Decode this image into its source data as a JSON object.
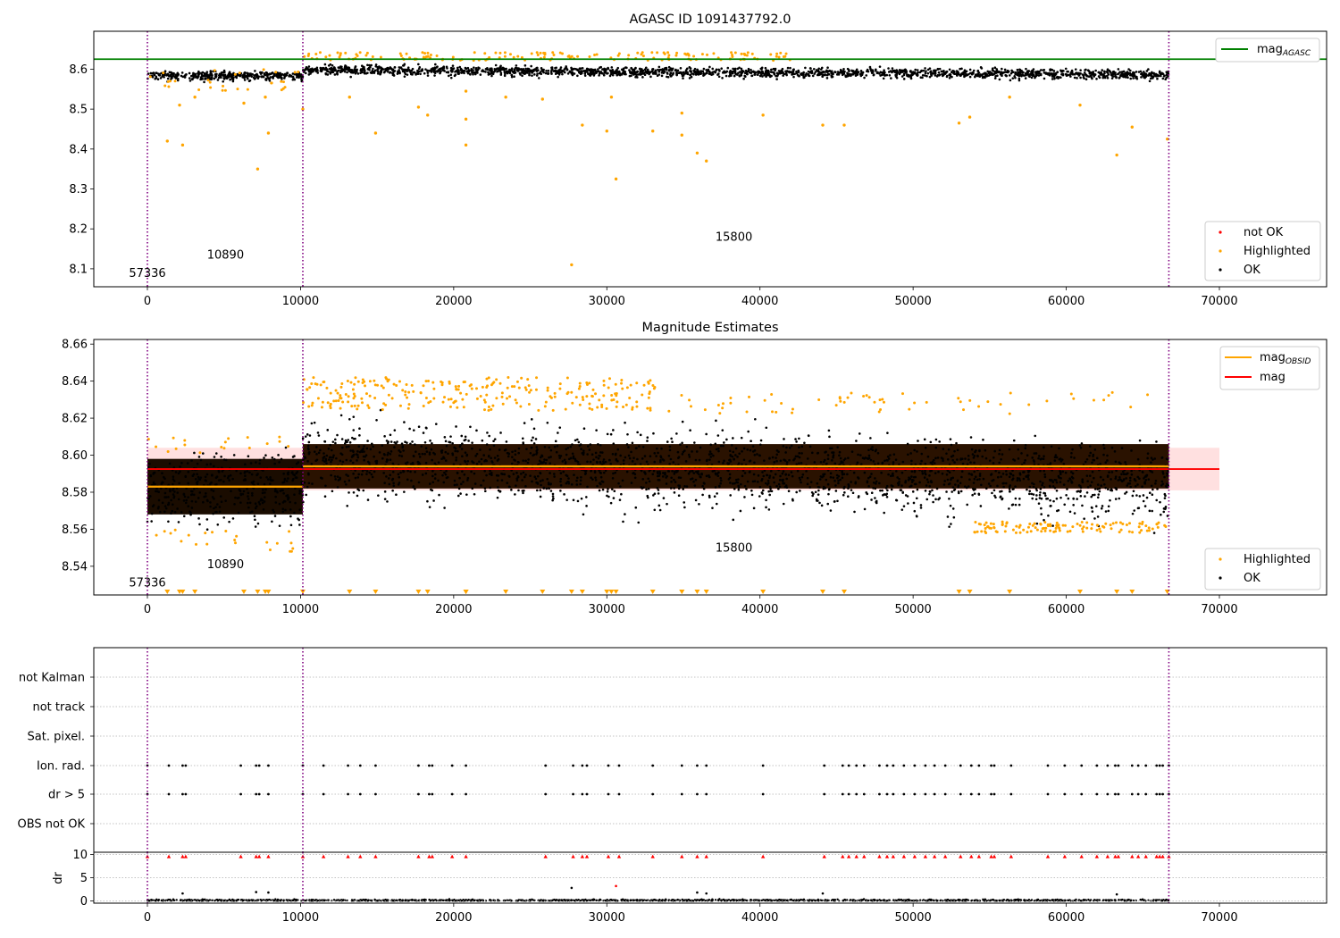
{
  "chart_data": [
    {
      "type": "scatter",
      "title": "AGASC ID 1091437792.0",
      "xlabel": "",
      "ylabel": "",
      "xlim": [
        -3500,
        77000
      ],
      "ylim": [
        8.055,
        8.695
      ],
      "xticks": [
        0,
        10000,
        20000,
        30000,
        40000,
        50000,
        60000,
        70000
      ],
      "yticks": [
        8.1,
        8.2,
        8.3,
        8.4,
        8.5,
        8.6
      ],
      "grid": false,
      "obs_boundaries": [
        0,
        10150,
        66700
      ],
      "obs_labels": [
        {
          "text": "57336",
          "x": 0,
          "y": 8.08
        },
        {
          "text": "10890",
          "x": 5100,
          "y": 8.125
        },
        {
          "text": "15800",
          "x": 38300,
          "y": 8.17
        }
      ],
      "lines": [
        {
          "name": "mag",
          "sub": "AGASC",
          "y": 8.625,
          "color": "#008000"
        }
      ],
      "series": [
        {
          "name": "not OK",
          "color": "#ff0000",
          "values": []
        },
        {
          "name": "Highlighted",
          "color": "#ffa500",
          "values": [
            [
              1300,
              8.42
            ],
            [
              2300,
              8.41
            ],
            [
              2100,
              8.51
            ],
            [
              3100,
              8.53
            ],
            [
              6300,
              8.515
            ],
            [
              7200,
              8.35
            ],
            [
              7700,
              8.53
            ],
            [
              7900,
              8.44
            ],
            [
              10150,
              8.5
            ],
            [
              13200,
              8.53
            ],
            [
              14900,
              8.44
            ],
            [
              17700,
              8.505
            ],
            [
              18300,
              8.485
            ],
            [
              20800,
              8.41
            ],
            [
              20800,
              8.475
            ],
            [
              20800,
              8.545
            ],
            [
              23400,
              8.53
            ],
            [
              25800,
              8.525
            ],
            [
              27700,
              8.11
            ],
            [
              28400,
              8.46
            ],
            [
              30000,
              8.445
            ],
            [
              30600,
              8.325
            ],
            [
              30300,
              8.53
            ],
            [
              33000,
              8.445
            ],
            [
              34900,
              8.49
            ],
            [
              34900,
              8.435
            ],
            [
              35900,
              8.39
            ],
            [
              36500,
              8.37
            ],
            [
              40200,
              8.485
            ],
            [
              44100,
              8.46
            ],
            [
              45500,
              8.46
            ],
            [
              53000,
              8.465
            ],
            [
              53700,
              8.48
            ],
            [
              56300,
              8.53
            ],
            [
              60900,
              8.51
            ],
            [
              63300,
              8.385
            ],
            [
              64300,
              8.455
            ],
            [
              66600,
              8.425
            ]
          ]
        },
        {
          "name": "OK",
          "color": "#000000",
          "values": []
        }
      ],
      "legend": [
        "top-right",
        "bottom-right"
      ]
    },
    {
      "type": "scatter",
      "title": "Magnitude Estimates",
      "xlabel": "",
      "ylabel": "",
      "xlim": [
        -3500,
        77000
      ],
      "ylim": [
        8.5245,
        8.6625
      ],
      "xticks": [
        0,
        10000,
        20000,
        30000,
        40000,
        50000,
        60000,
        70000
      ],
      "yticks": [
        8.54,
        8.56,
        8.58,
        8.6,
        8.62,
        8.64,
        8.66
      ],
      "grid": false,
      "obs_boundaries": [
        0,
        10150,
        66700
      ],
      "obs_labels": [
        {
          "text": "57336",
          "x": 0,
          "y": 8.529
        },
        {
          "text": "10890",
          "x": 5100,
          "y": 8.539
        },
        {
          "text": "15800",
          "x": 38300,
          "y": 8.548
        }
      ],
      "lines": [
        {
          "name": "mag",
          "sub": "OBSID",
          "color": "#ffa500",
          "segments": [
            [
              0,
              10150,
              8.583
            ],
            [
              10150,
              66700,
              8.594
            ]
          ]
        },
        {
          "name": "mag",
          "sub": "",
          "color": "#ff0000",
          "y": 8.5925,
          "band": [
            8.581,
            8.604
          ],
          "xrange": [
            0,
            70000
          ]
        }
      ],
      "series": [
        {
          "name": "Highlighted",
          "color": "#ffa500",
          "values": []
        },
        {
          "name": "OK",
          "color": "#000000",
          "values": []
        }
      ],
      "legend": [
        "top-right",
        "bottom-right"
      ]
    },
    {
      "type": "scatter",
      "title": "",
      "xlabel": "",
      "ylabel": "",
      "categories": [
        "not Kalman",
        "not track",
        "Sat. pixel.",
        "Ion. rad.",
        "dr > 5",
        "OBS not OK"
      ],
      "xlim": [
        -3500,
        77000
      ],
      "grid": true,
      "obs_boundaries": [
        0,
        10150,
        66700
      ],
      "flag_times": [
        0,
        1400,
        2300,
        2500,
        6100,
        7100,
        7300,
        7900,
        10150,
        11500,
        13100,
        13900,
        14900,
        17700,
        18400,
        18600,
        19900,
        20800,
        26000,
        27800,
        28400,
        28700,
        30100,
        30800,
        33000,
        34900,
        35900,
        36500,
        40200,
        44200,
        45400,
        45800,
        46300,
        46800,
        47800,
        48300,
        48700,
        49400,
        50100,
        50800,
        51400,
        52100,
        53100,
        53800,
        54300,
        55100,
        55300,
        56400,
        58800,
        59900,
        61000,
        62000,
        62700,
        63200,
        63400,
        64300,
        64700,
        65200,
        65900,
        66100,
        66300,
        66700
      ]
    },
    {
      "type": "scatter",
      "title": "",
      "xlabel": "",
      "ylabel": "dr",
      "xlim": [
        -3500,
        77000
      ],
      "ylim": [
        -0.5,
        10.5
      ],
      "xticks": [
        0,
        10000,
        20000,
        30000,
        40000,
        50000,
        60000,
        70000
      ],
      "yticks": [
        0,
        5,
        10
      ],
      "grid": true,
      "obs_boundaries": [
        0,
        10150,
        66700
      ],
      "series": [
        {
          "name": "dr",
          "color": "#000000",
          "values": [
            [
              2300,
              1.6
            ],
            [
              7100,
              1.9
            ],
            [
              7900,
              1.8
            ],
            [
              27700,
              2.8
            ],
            [
              35900,
              1.8
            ],
            [
              36500,
              1.6
            ],
            [
              44100,
              1.6
            ],
            [
              63300,
              1.4
            ]
          ]
        },
        {
          "name": "dr > 5",
          "color": "#ff0000",
          "values": [
            [
              30600,
              3.2
            ]
          ]
        }
      ]
    }
  ]
}
